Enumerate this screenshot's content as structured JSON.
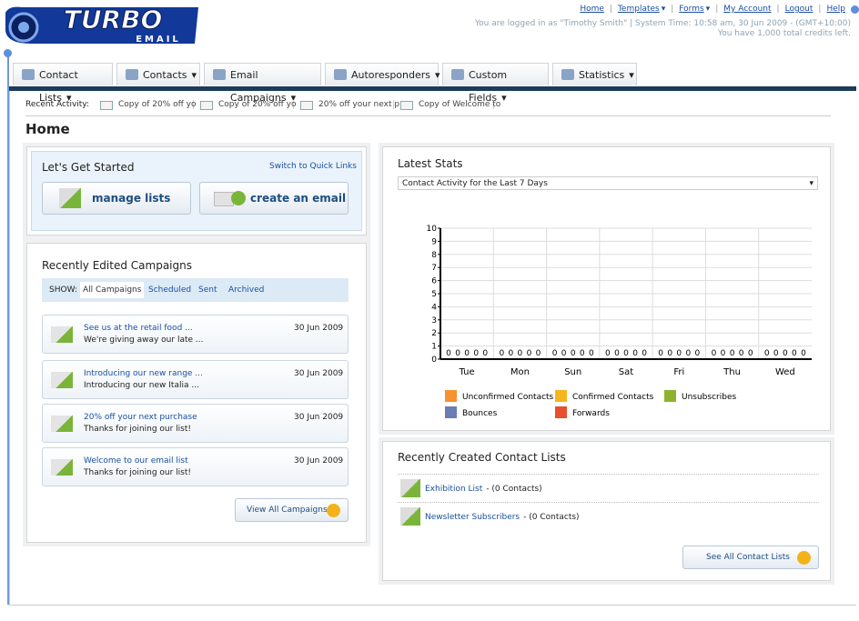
{
  "header": {
    "logo_title": "TURBO",
    "logo_subtitle": "EMAIL",
    "links": [
      "Home",
      "Templates",
      "Forms",
      "My Account",
      "Logout",
      "Help"
    ],
    "status": "You are logged in as \"Timothy Smith\" | System Time: 10:58 am, 30 Jun 2009 - (GMT+10:00)",
    "credits": "You have 1,000 total credits left."
  },
  "nav": [
    "Contact Lists",
    "Contacts",
    "Email Campaigns",
    "Autoresponders",
    "Custom Fields",
    "Statistics"
  ],
  "recent_activity": {
    "label": "Recent Activity:",
    "items": [
      "Copy of 20% off yo",
      "Copy of 20% off yo",
      "20% off your next p",
      "Copy of Welcome to"
    ]
  },
  "page_title": "Home",
  "get_started": {
    "title": "Let's Get Started",
    "switch_link": "Switch to Quick Links",
    "buttons": [
      "manage lists",
      "create an email"
    ]
  },
  "campaigns": {
    "title": "Recently Edited Campaigns",
    "show_label": "SHOW:",
    "filters": [
      "All Campaigns",
      "Scheduled",
      "Sent",
      "Archived"
    ],
    "items": [
      {
        "title": "See us at the retail food ...",
        "preview": "We're giving away our late ...",
        "date": "30 Jun 2009"
      },
      {
        "title": "Introducing our new range ...",
        "preview": "Introducing our new Italia ...",
        "date": "30 Jun 2009"
      },
      {
        "title": "20% off your next purchase",
        "preview": "Thanks for joining our list!",
        "date": "30 Jun 2009"
      },
      {
        "title": "Welcome to our email list",
        "preview": "Thanks for joining our list!",
        "date": "30 Jun 2009"
      }
    ],
    "view_all": "View All Campaigns"
  },
  "latest_stats": {
    "title": "Latest Stats",
    "select": "Contact Activity for the Last 7 Days"
  },
  "chart_data": {
    "type": "bar",
    "categories": [
      "Tue",
      "Mon",
      "Sun",
      "Sat",
      "Fri",
      "Thu",
      "Wed"
    ],
    "series": [
      {
        "name": "Unconfirmed Contacts",
        "color": "#f7922f",
        "values": [
          0,
          0,
          0,
          0,
          0,
          0,
          0
        ]
      },
      {
        "name": "Confirmed Contacts",
        "color": "#f6b41f",
        "values": [
          0,
          0,
          0,
          0,
          0,
          0,
          0
        ]
      },
      {
        "name": "Unsubscribes",
        "color": "#8db32e",
        "values": [
          0,
          0,
          0,
          0,
          0,
          0,
          0
        ]
      },
      {
        "name": "Bounces",
        "color": "#6b7db3",
        "values": [
          0,
          0,
          0,
          0,
          0,
          0,
          0
        ]
      },
      {
        "name": "Forwards",
        "color": "#e6502c",
        "values": [
          0,
          0,
          0,
          0,
          0,
          0,
          0
        ]
      }
    ],
    "ylim": [
      0,
      10
    ],
    "yticks": [
      0,
      1,
      2,
      3,
      4,
      5,
      6,
      7,
      8,
      9,
      10
    ],
    "grid": true
  },
  "contact_lists": {
    "title": "Recently Created Contact Lists",
    "items": [
      {
        "name": "Exhibition List",
        "count": "- (0 Contacts)"
      },
      {
        "name": "Newsletter Subscribers",
        "count": "- (0 Contacts)"
      }
    ],
    "see_all": "See All Contact Lists"
  }
}
